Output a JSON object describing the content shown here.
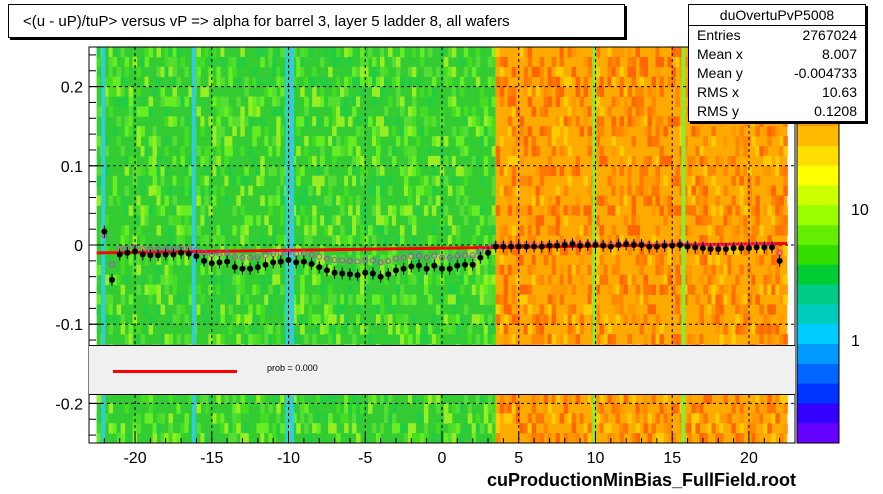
{
  "title": "<(u - uP)/tuP> versus   vP => alpha for barrel 3, layer 5 ladder 8, all wafers",
  "stats": {
    "name": "duOvertuPvP5008",
    "rows": [
      {
        "label": "Entries",
        "value": "2767024"
      },
      {
        "label": "Mean x",
        "value": "8.007"
      },
      {
        "label": "Mean y",
        "value": "-0.004733"
      },
      {
        "label": "RMS x",
        "value": "10.63"
      },
      {
        "label": "RMS y",
        "value": "0.1208"
      }
    ]
  },
  "footer": "cuProductionMinBias_FullField.root",
  "legend": {
    "fit_label": "prob = 0.000"
  },
  "colors": {
    "fit_line": "#ff0000",
    "profile_points": "#000000",
    "secondary_points": "#cc33cc"
  },
  "chart_data": {
    "type": "heatmap",
    "xlim": [
      -23,
      23
    ],
    "ylim": [
      -0.25,
      0.25
    ],
    "x_ticks": [
      -20,
      -15,
      -10,
      -5,
      0,
      5,
      10,
      15,
      20
    ],
    "x_tick_labels": [
      "-20",
      "-15",
      "-10",
      "-5",
      "0",
      "5",
      "10",
      "15",
      "20"
    ],
    "y_ticks": [
      -0.2,
      -0.1,
      0,
      0.1,
      0.2
    ],
    "y_tick_labels": [
      "-0.2",
      "-0.1",
      "0",
      "0.1",
      "0.2"
    ],
    "z_scale": "log",
    "z_ticks": [
      1,
      10
    ],
    "z_tick_labels": [
      "1",
      "10"
    ],
    "grid": true,
    "heat_regions": [
      {
        "x": [
          -22.5,
          3.5
        ],
        "level": "green"
      },
      {
        "x": [
          3.5,
          22.5
        ],
        "level": "orange"
      }
    ],
    "profile_x": [
      -22,
      -21.5,
      -21,
      -20.5,
      -20,
      -19.5,
      -19,
      -18.5,
      -18,
      -17.5,
      -17,
      -16.5,
      -16,
      -15.5,
      -15,
      -14.5,
      -14,
      -13.5,
      -13,
      -12.5,
      -12,
      -11.5,
      -11,
      -10.5,
      -10,
      -9.5,
      -9,
      -8.5,
      -8,
      -7.5,
      -7,
      -6.5,
      -6,
      -5.5,
      -5,
      -4.5,
      -4,
      -3.5,
      -3,
      -2.5,
      -2,
      -1.5,
      -1,
      -0.5,
      0,
      0.5,
      1,
      1.5,
      2,
      2.5,
      3,
      3.5,
      4,
      4.5,
      5,
      5.5,
      6,
      6.5,
      7,
      7.5,
      8,
      8.5,
      9,
      9.5,
      10,
      10.5,
      11,
      11.5,
      12,
      12.5,
      13,
      13.5,
      14,
      14.5,
      15,
      15.5,
      16,
      16.5,
      17,
      17.5,
      18,
      18.5,
      19,
      19.5,
      20,
      20.5,
      21,
      21.5,
      22
    ],
    "profile_y": [
      0.017,
      -0.044,
      -0.012,
      -0.01,
      -0.008,
      -0.012,
      -0.013,
      -0.013,
      -0.012,
      -0.012,
      -0.01,
      -0.011,
      -0.014,
      -0.02,
      -0.023,
      -0.022,
      -0.021,
      -0.028,
      -0.03,
      -0.03,
      -0.028,
      -0.025,
      -0.022,
      -0.021,
      -0.019,
      -0.022,
      -0.021,
      -0.024,
      -0.028,
      -0.032,
      -0.035,
      -0.036,
      -0.037,
      -0.038,
      -0.035,
      -0.036,
      -0.04,
      -0.037,
      -0.032,
      -0.03,
      -0.027,
      -0.026,
      -0.03,
      -0.026,
      -0.03,
      -0.03,
      -0.026,
      -0.025,
      -0.025,
      -0.016,
      -0.01,
      -0.002,
      -0.002,
      -0.002,
      -0.002,
      -0.002,
      -0.002,
      -0.002,
      -0.001,
      -0.001,
      0.0,
      0.001,
      -0.001,
      0.0,
      0.0,
      -0.001,
      -0.002,
      0.0,
      0.001,
      0.0,
      0.0,
      -0.002,
      -0.002,
      -0.001,
      -0.001,
      0.0,
      -0.002,
      -0.003,
      -0.004,
      -0.005,
      -0.005,
      -0.005,
      -0.004,
      -0.004,
      -0.004,
      -0.003,
      -0.003,
      -0.003,
      -0.02
    ],
    "fit_line": {
      "x": [
        -22.5,
        22.5
      ],
      "y": [
        -0.01,
        0.002
      ]
    }
  }
}
